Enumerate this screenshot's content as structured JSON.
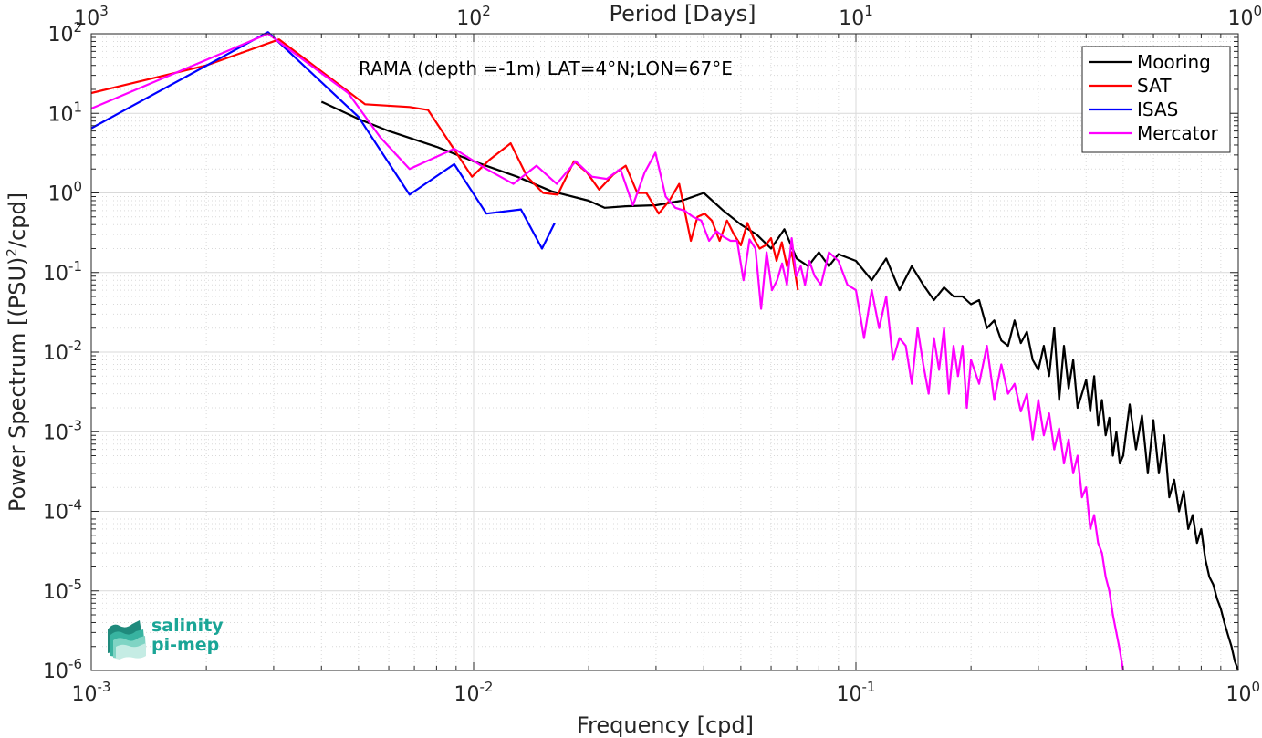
{
  "chart_data": {
    "type": "line",
    "title": "",
    "annotation": "RAMA (depth =-1m) LAT=4°N;LON=67°E",
    "xlabel": "Frequency [cpd]",
    "ylabel_main": "Power Spectrum [(PSU)",
    "ylabel_sup": "2",
    "ylabel_end": "/cpd]",
    "top_xlabel": "Period [Days]",
    "xscale": "log",
    "yscale": "log",
    "xlim": [
      0.001,
      1
    ],
    "ylim": [
      1e-06,
      100
    ],
    "grid": true,
    "legend_placement": "top-right",
    "x_ticks": [
      {
        "value": 0.001,
        "base": "10",
        "exp": "-3"
      },
      {
        "value": 0.01,
        "base": "10",
        "exp": "-2"
      },
      {
        "value": 0.1,
        "base": "10",
        "exp": "-1"
      },
      {
        "value": 1,
        "base": "10",
        "exp": "0"
      }
    ],
    "top_ticks": [
      {
        "freq": 0.001,
        "base": "10",
        "exp": "3"
      },
      {
        "freq": 0.01,
        "base": "10",
        "exp": "2"
      },
      {
        "freq": 0.1,
        "base": "10",
        "exp": "1"
      },
      {
        "freq": 1,
        "base": "10",
        "exp": "0"
      }
    ],
    "y_ticks": [
      {
        "value": 1e-06,
        "base": "10",
        "exp": "-6"
      },
      {
        "value": 1e-05,
        "base": "10",
        "exp": "-5"
      },
      {
        "value": 0.0001,
        "base": "10",
        "exp": "-4"
      },
      {
        "value": 0.001,
        "base": "10",
        "exp": "-3"
      },
      {
        "value": 0.01,
        "base": "10",
        "exp": "-2"
      },
      {
        "value": 0.1,
        "base": "10",
        "exp": "-1"
      },
      {
        "value": 1,
        "base": "10",
        "exp": "0"
      },
      {
        "value": 10,
        "base": "10",
        "exp": "1"
      },
      {
        "value": 100,
        "base": "10",
        "exp": "2"
      }
    ],
    "series": [
      {
        "name": "Mooring",
        "color": "#000000",
        "x": [
          0.004,
          0.005,
          0.006,
          0.008,
          0.01,
          0.013,
          0.016,
          0.02,
          0.022,
          0.025,
          0.03,
          0.035,
          0.04,
          0.045,
          0.05,
          0.055,
          0.06,
          0.065,
          0.07,
          0.075,
          0.08,
          0.085,
          0.09,
          0.1,
          0.11,
          0.12,
          0.13,
          0.14,
          0.15,
          0.16,
          0.17,
          0.18,
          0.19,
          0.2,
          0.21,
          0.22,
          0.23,
          0.24,
          0.25,
          0.26,
          0.27,
          0.28,
          0.29,
          0.3,
          0.31,
          0.32,
          0.33,
          0.34,
          0.35,
          0.36,
          0.37,
          0.38,
          0.39,
          0.4,
          0.41,
          0.42,
          0.43,
          0.44,
          0.45,
          0.46,
          0.47,
          0.48,
          0.49,
          0.5,
          0.52,
          0.54,
          0.56,
          0.58,
          0.6,
          0.62,
          0.64,
          0.66,
          0.68,
          0.7,
          0.72,
          0.74,
          0.76,
          0.78,
          0.8,
          0.82,
          0.84,
          0.86,
          0.88,
          0.9,
          0.92,
          0.94,
          0.96,
          0.98,
          1.0
        ],
        "y": [
          14,
          8.5,
          6.0,
          3.8,
          2.5,
          1.6,
          1.05,
          0.8,
          0.65,
          0.68,
          0.7,
          0.8,
          1.0,
          0.6,
          0.4,
          0.3,
          0.2,
          0.35,
          0.15,
          0.12,
          0.18,
          0.12,
          0.17,
          0.14,
          0.08,
          0.15,
          0.06,
          0.12,
          0.07,
          0.045,
          0.065,
          0.05,
          0.05,
          0.04,
          0.045,
          0.02,
          0.025,
          0.014,
          0.012,
          0.025,
          0.013,
          0.018,
          0.008,
          0.006,
          0.012,
          0.005,
          0.02,
          0.0025,
          0.012,
          0.0035,
          0.008,
          0.002,
          0.003,
          0.0045,
          0.0018,
          0.005,
          0.0012,
          0.0025,
          0.0009,
          0.0015,
          0.0005,
          0.001,
          0.0004,
          0.0005,
          0.0022,
          0.0006,
          0.0016,
          0.0003,
          0.0014,
          0.0003,
          0.0009,
          0.00015,
          0.00025,
          0.0001,
          0.00018,
          6e-05,
          9e-05,
          4e-05,
          6e-05,
          2.5e-05,
          1.5e-05,
          1.2e-05,
          8e-06,
          6e-06,
          4e-06,
          2.8e-06,
          2e-06,
          1.3e-06,
          1e-06
        ]
      },
      {
        "name": "SAT",
        "color": "#ff0000",
        "x": [
          0.001,
          0.002,
          0.0031,
          0.0045,
          0.0052,
          0.0068,
          0.0076,
          0.0089,
          0.0099,
          0.011,
          0.0125,
          0.0138,
          0.0152,
          0.0166,
          0.0183,
          0.0198,
          0.0213,
          0.0232,
          0.025,
          0.0268,
          0.0283,
          0.0305,
          0.0325,
          0.0345,
          0.037,
          0.0385,
          0.0402,
          0.042,
          0.044,
          0.046,
          0.048,
          0.05,
          0.052,
          0.054,
          0.056,
          0.058,
          0.06,
          0.062,
          0.064,
          0.066,
          0.068,
          0.0705
        ],
        "y": [
          18,
          40,
          85,
          22,
          13,
          12,
          11,
          3.5,
          1.6,
          2.6,
          4.2,
          1.6,
          1.0,
          0.95,
          2.5,
          1.8,
          1.1,
          1.7,
          2.2,
          1.0,
          1.0,
          0.55,
          0.8,
          1.3,
          0.25,
          0.5,
          0.55,
          0.45,
          0.25,
          0.45,
          0.3,
          0.22,
          0.42,
          0.27,
          0.2,
          0.22,
          0.27,
          0.14,
          0.24,
          0.12,
          0.18,
          0.06
        ]
      },
      {
        "name": "ISAS",
        "color": "#0000ff",
        "x": [
          0.001,
          0.0029,
          0.005,
          0.0068,
          0.0089,
          0.0108,
          0.0133,
          0.0151,
          0.0163
        ],
        "y": [
          6.5,
          105,
          9.0,
          0.95,
          2.3,
          0.55,
          0.62,
          0.2,
          0.42
        ]
      },
      {
        "name": "Mercator",
        "color": "#ff00ff",
        "x": [
          0.001,
          0.0029,
          0.0047,
          0.0057,
          0.0068,
          0.0089,
          0.0108,
          0.0127,
          0.0146,
          0.0165,
          0.0185,
          0.0204,
          0.0223,
          0.0242,
          0.0261,
          0.028,
          0.0299,
          0.0318,
          0.0337,
          0.0356,
          0.0375,
          0.0394,
          0.0413,
          0.0432,
          0.0451,
          0.047,
          0.0489,
          0.0508,
          0.0527,
          0.0546,
          0.0565,
          0.0584,
          0.0603,
          0.0622,
          0.0641,
          0.066,
          0.0679,
          0.0698,
          0.0717,
          0.0736,
          0.0755,
          0.078,
          0.081,
          0.085,
          0.09,
          0.095,
          0.1,
          0.105,
          0.11,
          0.115,
          0.12,
          0.125,
          0.13,
          0.135,
          0.14,
          0.145,
          0.15,
          0.155,
          0.16,
          0.165,
          0.17,
          0.175,
          0.18,
          0.185,
          0.19,
          0.195,
          0.2,
          0.21,
          0.22,
          0.23,
          0.24,
          0.25,
          0.26,
          0.27,
          0.28,
          0.29,
          0.3,
          0.31,
          0.32,
          0.33,
          0.34,
          0.35,
          0.36,
          0.37,
          0.38,
          0.39,
          0.4,
          0.41,
          0.42,
          0.43,
          0.44,
          0.45,
          0.46,
          0.47,
          0.48,
          0.49,
          0.5
        ],
        "y": [
          11.5,
          100,
          18,
          5.0,
          2.0,
          3.6,
          2.0,
          1.3,
          2.2,
          1.3,
          2.5,
          1.6,
          1.5,
          2.0,
          0.7,
          1.8,
          3.2,
          0.9,
          0.65,
          0.6,
          0.5,
          0.45,
          0.25,
          0.33,
          0.28,
          0.25,
          0.25,
          0.08,
          0.26,
          0.2,
          0.035,
          0.18,
          0.06,
          0.08,
          0.13,
          0.07,
          0.27,
          0.09,
          0.12,
          0.07,
          0.14,
          0.09,
          0.07,
          0.18,
          0.14,
          0.07,
          0.06,
          0.015,
          0.06,
          0.02,
          0.05,
          0.008,
          0.015,
          0.012,
          0.004,
          0.02,
          0.007,
          0.003,
          0.015,
          0.006,
          0.02,
          0.003,
          0.012,
          0.005,
          0.012,
          0.002,
          0.008,
          0.004,
          0.012,
          0.0025,
          0.007,
          0.003,
          0.004,
          0.0018,
          0.003,
          0.0008,
          0.0025,
          0.0009,
          0.0017,
          0.0006,
          0.0011,
          0.0004,
          0.0008,
          0.0003,
          0.0005,
          0.00015,
          0.0002,
          6e-05,
          9e-05,
          4e-05,
          3e-05,
          1.5e-05,
          1e-05,
          5e-06,
          3e-06,
          1.8e-06,
          1e-06
        ]
      }
    ]
  },
  "logo": {
    "line1": "salinity",
    "line2": "pi-mep"
  }
}
